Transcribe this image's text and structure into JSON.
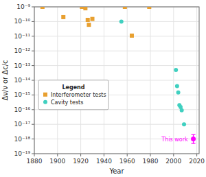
{
  "chart_data": {
    "type": "scatter",
    "x_label": "Year",
    "y_label": "Δν/ν or Δc/c",
    "xlim": [
      1880,
      2022
    ],
    "xticks": [
      1880,
      1900,
      1920,
      1940,
      1960,
      1980,
      2000,
      2020
    ],
    "ylim": [
      1e-19,
      1e-09
    ],
    "yticks": [
      {
        "value": 1e-19,
        "label": "10⁻¹⁹"
      },
      {
        "value": 1e-18,
        "label": "10⁻¹⁸"
      },
      {
        "value": 1e-17,
        "label": "10⁻¹⁷"
      },
      {
        "value": 1e-16,
        "label": "10⁻¹⁶"
      },
      {
        "value": 1e-15,
        "label": "10⁻¹⁵"
      },
      {
        "value": 1e-14,
        "label": "10⁻¹⁴"
      },
      {
        "value": 1e-13,
        "label": "10⁻¹³"
      },
      {
        "value": 1e-12,
        "label": "10⁻¹²"
      },
      {
        "value": 1e-11,
        "label": "10⁻¹¹"
      },
      {
        "value": 1e-10,
        "label": "10⁻¹⁰"
      },
      {
        "value": 1e-09,
        "label": "10⁻⁹"
      }
    ],
    "log": "y",
    "grid": true,
    "legend": "lower left",
    "legend_title": "Legend",
    "series": [
      {
        "name": "Interferometer tests",
        "color": "#E8A030",
        "marker": "square",
        "x": [
          1887,
          1905,
          1921,
          1924,
          1926,
          1927,
          1930,
          1958,
          1964,
          1979
        ],
        "values": [
          1e-09,
          2e-10,
          1e-09,
          8e-10,
          1.3e-10,
          6e-11,
          1.5e-10,
          1e-09,
          1.1e-11,
          1e-09
        ]
      },
      {
        "name": "Cavity tests",
        "color": "#40D0C0",
        "marker": "circle",
        "x": [
          1955,
          2002,
          2003,
          2004,
          2005,
          2006,
          2007,
          2009
        ],
        "values": [
          1e-10,
          5e-14,
          4e-15,
          1.5e-15,
          2e-16,
          1.5e-16,
          9e-17,
          1e-17
        ]
      },
      {
        "color": "#FF00FF",
        "marker": "circle",
        "x": [
          2017
        ],
        "values": [
          1e-18
        ],
        "error_low": [
          5e-19
        ],
        "error_high": [
          2e-18
        ]
      }
    ],
    "annotations": [
      {
        "text": "This work",
        "x": 2017,
        "y": 1e-18
      }
    ]
  }
}
